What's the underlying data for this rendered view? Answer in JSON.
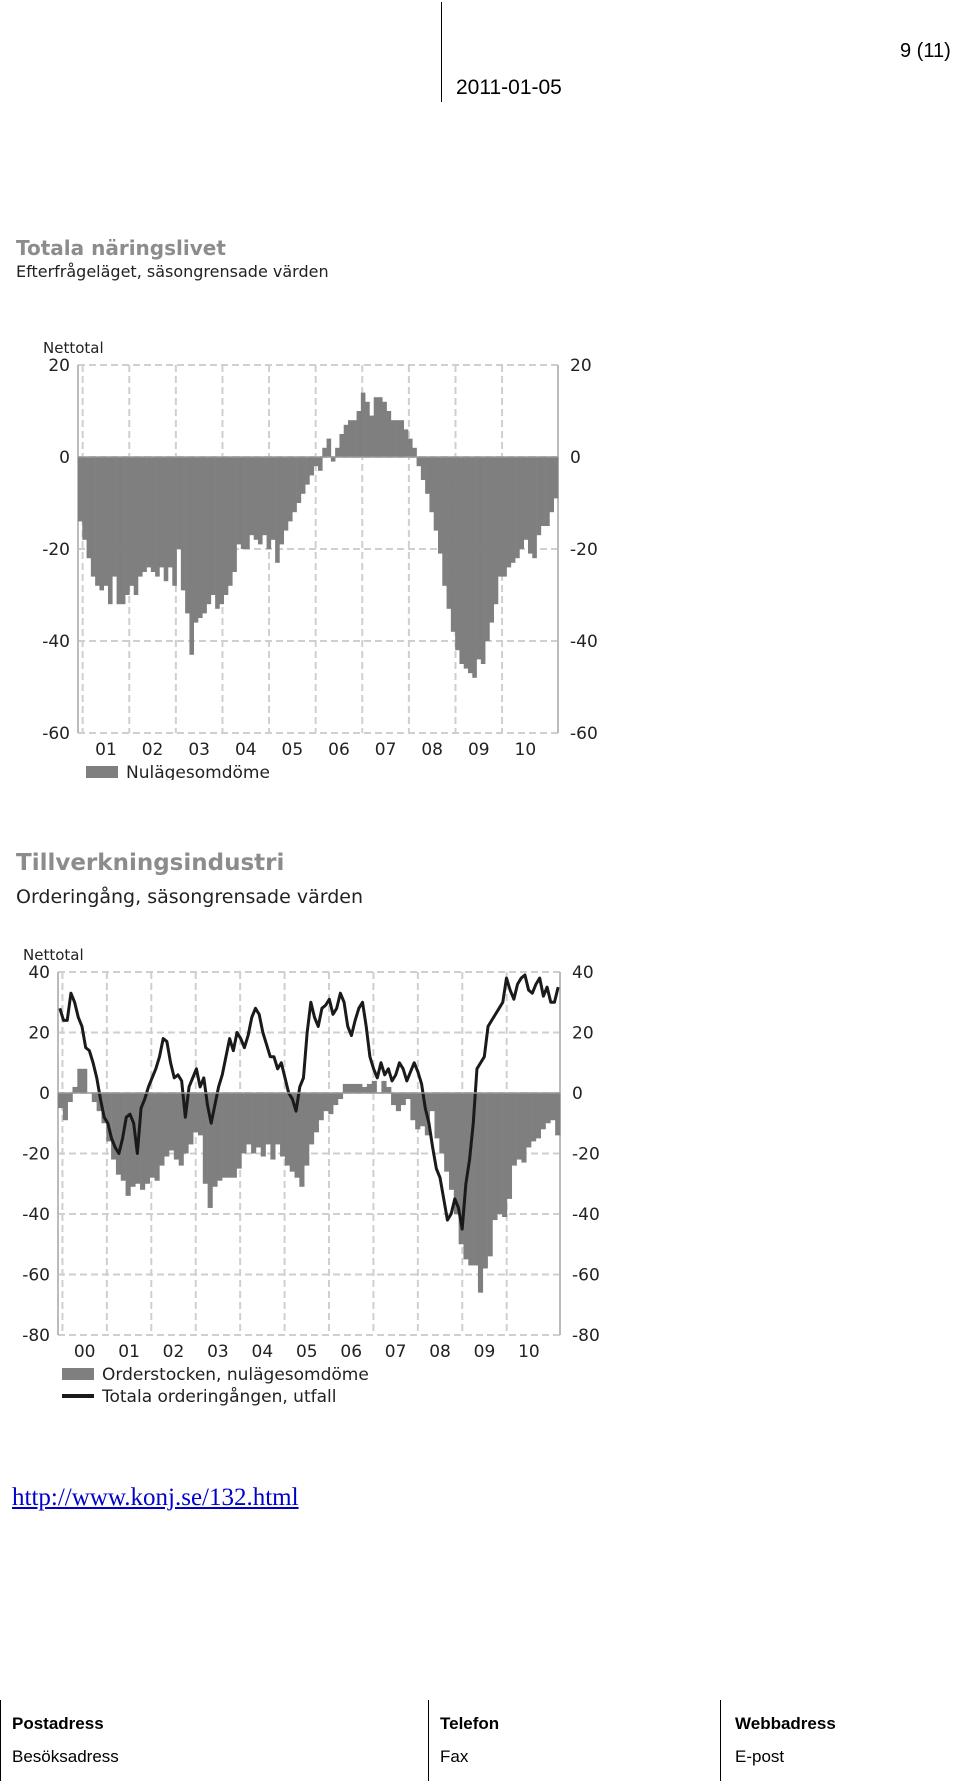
{
  "header": {
    "page_number": "9 (11)",
    "date": "2011-01-05"
  },
  "link": {
    "text": "http://www.konj.se/132.html"
  },
  "footer": {
    "col1": {
      "label": "Postadress",
      "sub": "Besöksadress"
    },
    "col2": {
      "label": "Telefon",
      "sub": "Fax"
    },
    "col3": {
      "label": "Webbadress",
      "sub": "E-post"
    }
  },
  "colors": {
    "bar": "#7f7f7f",
    "line": "#1a1a1a",
    "grid": "#cfcfcf",
    "link": "#0000cc"
  },
  "chart_data": [
    {
      "type": "bar",
      "title": "Totala näringslivet",
      "subtitle": "Efterfrågeläget, säsongrensade värden",
      "ylabel": "Nettotal",
      "ylim": [
        -60,
        20
      ],
      "yticks": [
        20,
        0,
        -20,
        -40,
        -60
      ],
      "xticks": [
        "01",
        "02",
        "03",
        "04",
        "05",
        "06",
        "07",
        "08",
        "09",
        "10"
      ],
      "x_start_year": 2000,
      "x_end_year": 2010,
      "grid": true,
      "legend_position": "bottom-left",
      "series": [
        {
          "name": "Nulägesomdöme",
          "kind": "bar",
          "values": [
            -14,
            -18,
            -22,
            -26,
            -28,
            -29,
            -28,
            -32,
            -26,
            -32,
            -32,
            -30,
            -28,
            -30,
            -26,
            -25,
            -24,
            -25,
            -26,
            -24,
            -27,
            -24,
            -28,
            -20,
            -29,
            -34,
            -43,
            -36,
            -35,
            -34,
            -32,
            -30,
            -33,
            -32,
            -30,
            -28,
            -25,
            -19,
            -20,
            -20,
            -17,
            -18,
            -19,
            -17,
            -20,
            -18,
            -23,
            -19,
            -16,
            -14,
            -12,
            -10,
            -8,
            -6,
            -4,
            -2,
            -3,
            2,
            4,
            -1,
            2,
            5,
            7,
            8,
            8,
            10,
            14,
            12,
            9,
            13,
            13,
            12,
            10,
            8,
            8,
            8,
            6,
            4,
            2,
            -2,
            -5,
            -8,
            -12,
            -16,
            -21,
            -28,
            -33,
            -38,
            -42,
            -45,
            -46,
            -47,
            -48,
            -44,
            -45,
            -40,
            -36,
            -32,
            -26,
            -26,
            -24,
            -23,
            -22,
            -20,
            -18,
            -21,
            -22,
            -17,
            -15,
            -15,
            -12,
            -9
          ]
        }
      ]
    },
    {
      "type": "bar",
      "title": "Tillverkningsindustri",
      "subtitle": "Orderingång, säsongrensade värden",
      "ylabel": "Nettotal",
      "ylim": [
        -80,
        40
      ],
      "yticks": [
        40,
        20,
        0,
        -20,
        -40,
        -60,
        -80
      ],
      "xticks": [
        "00",
        "01",
        "02",
        "03",
        "04",
        "05",
        "06",
        "07",
        "08",
        "09",
        "10"
      ],
      "x_start_year": 1999.5,
      "x_end_year": 2010.9,
      "grid": true,
      "legend_position": "bottom-left",
      "series": [
        {
          "name": "Orderstocken, nulägesomdöme",
          "kind": "bar",
          "values": [
            -5,
            -9,
            -3,
            2,
            8,
            8,
            0,
            -3,
            -6,
            -10,
            -16,
            -22,
            -27,
            -29,
            -34,
            -31,
            -30,
            -32,
            -30,
            -28,
            -29,
            -24,
            -21,
            -19,
            -22,
            -24,
            -20,
            -17,
            -13,
            -14,
            -30,
            -38,
            -31,
            -29,
            -28,
            -28,
            -28,
            -25,
            -20,
            -17,
            -20,
            -18,
            -21,
            -17,
            -22,
            -17,
            -21,
            -24,
            -26,
            -28,
            -31,
            -24,
            -17,
            -13,
            -9,
            -6,
            -7,
            -4,
            -2,
            3,
            3,
            3,
            3,
            2,
            3,
            4,
            0,
            4,
            2,
            -4,
            -6,
            -4,
            -2,
            -9,
            -12,
            -11,
            -14,
            -6,
            -15,
            -20,
            -26,
            -32,
            -40,
            -50,
            -55,
            -57,
            -57,
            -66,
            -58,
            -54,
            -42,
            -40,
            -41,
            -35,
            -24,
            -22,
            -23,
            -18,
            -16,
            -15,
            -12,
            -10,
            -9,
            -14
          ]
        },
        {
          "name": "Totala orderingången, utfall",
          "kind": "line",
          "values": [
            28,
            24,
            24,
            33,
            30,
            25,
            22,
            15,
            14,
            10,
            5,
            -2,
            -8,
            -10,
            -15,
            -18,
            -20,
            -15,
            -8,
            -7,
            -10,
            -20,
            -5,
            -2,
            2,
            5,
            8,
            12,
            18,
            17,
            10,
            5,
            6,
            4,
            -8,
            2,
            5,
            8,
            2,
            5,
            -4,
            -10,
            -4,
            2,
            6,
            12,
            18,
            14,
            20,
            18,
            15,
            19,
            25,
            28,
            26,
            20,
            16,
            12,
            12,
            8,
            10,
            5,
            0,
            -2,
            -6,
            2,
            5,
            20,
            30,
            25,
            22,
            28,
            29,
            31,
            26,
            28,
            33,
            30,
            22,
            19,
            24,
            28,
            30,
            22,
            12,
            8,
            5,
            10,
            6,
            8,
            4,
            6,
            10,
            8,
            4,
            7,
            10,
            7,
            3,
            -5,
            -10,
            -18,
            -25,
            -28,
            -35,
            -42,
            -40,
            -35,
            -38,
            -45,
            -30,
            -22,
            -10,
            8,
            10,
            12,
            22,
            24,
            26,
            28,
            30,
            38,
            34,
            31,
            36,
            38,
            39,
            34,
            33,
            36,
            38,
            32,
            35,
            30,
            30,
            35
          ],
          "x_start_year": 1999.5,
          "x_end_year": 2010.9
        }
      ]
    }
  ]
}
